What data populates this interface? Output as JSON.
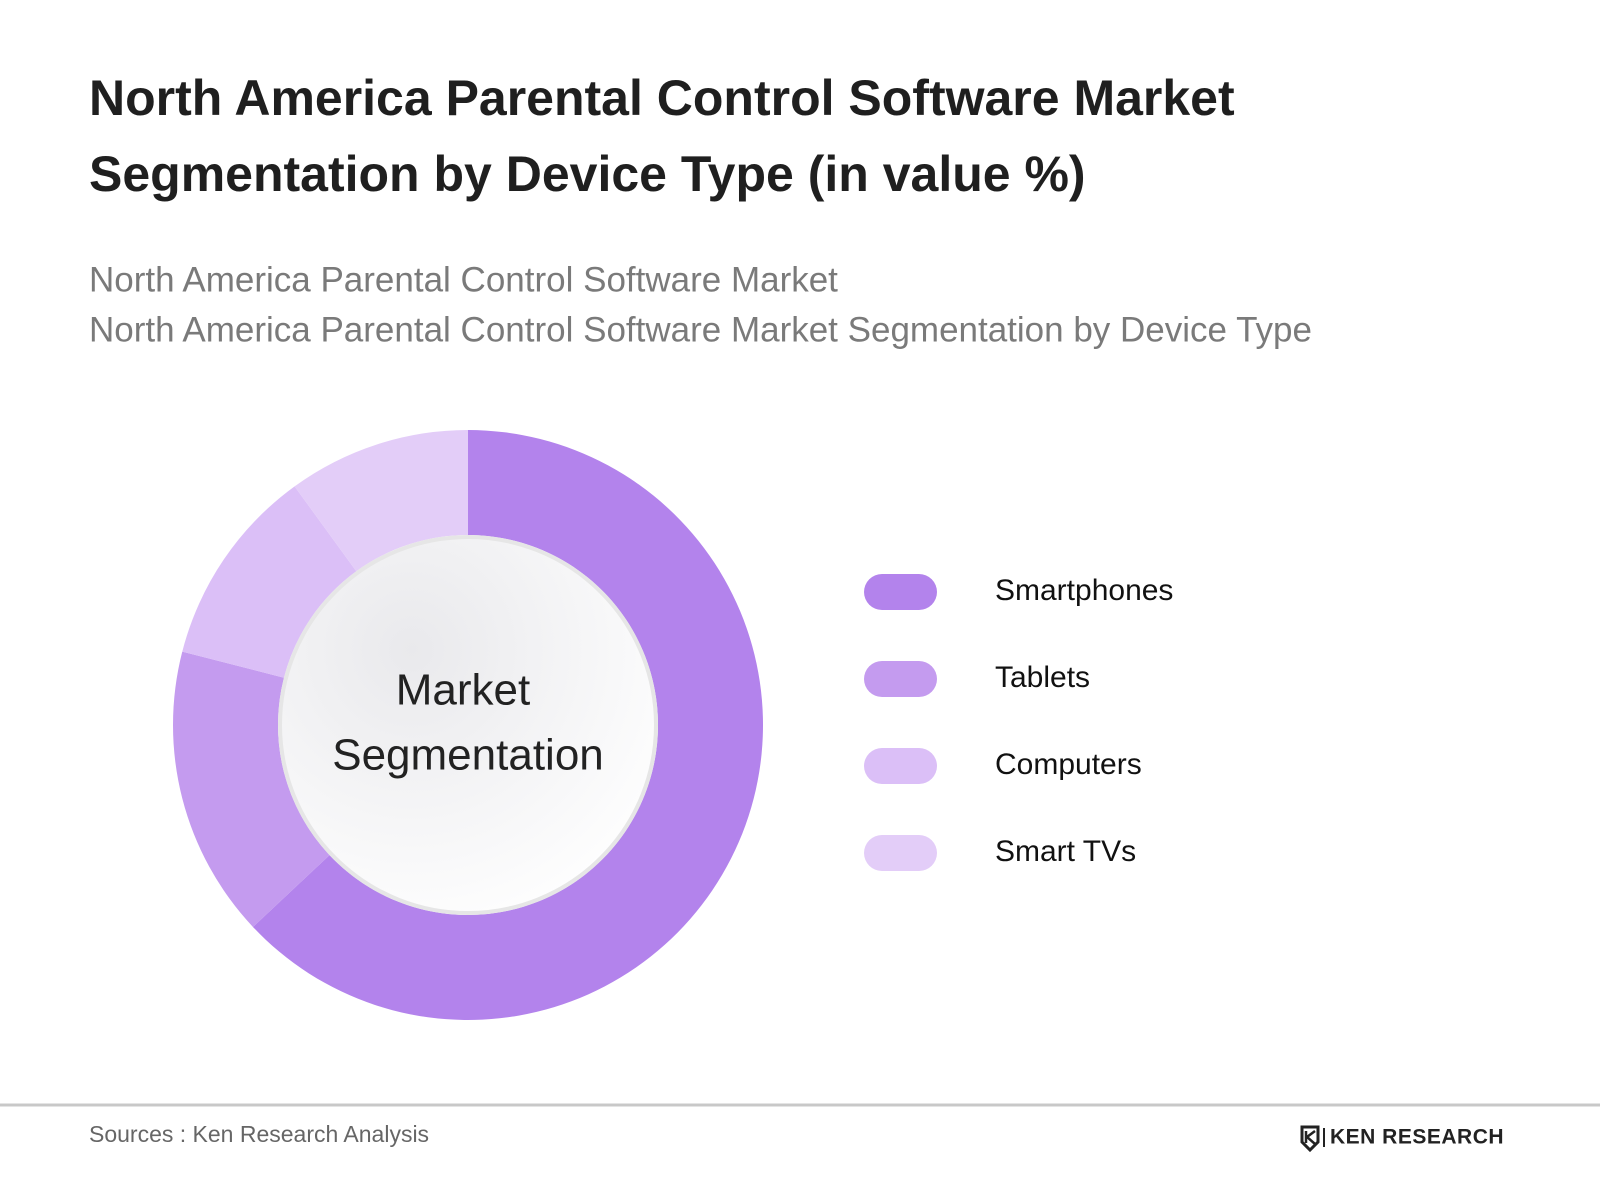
{
  "chart_data": {
    "type": "donut",
    "title": [
      "North America Parental Control Software Market",
      "Segmentation by Device Type (in value %)"
    ],
    "subtitle": [
      "North America Parental Control Software Market",
      "North America Parental Control Software Market Segmentation by Device Type"
    ],
    "center_label": [
      "Market",
      "Segmentation"
    ],
    "categories": [
      "Smartphones",
      "Tablets",
      "Computers",
      "Smart TVs"
    ],
    "values": [
      63,
      16,
      11,
      10
    ],
    "colors": [
      "#b383ec",
      "#c49bef",
      "#dbbff7",
      "#e3cdf8"
    ],
    "source": "Sources : Ken Research Analysis",
    "logo": "KEN RESEARCH"
  }
}
